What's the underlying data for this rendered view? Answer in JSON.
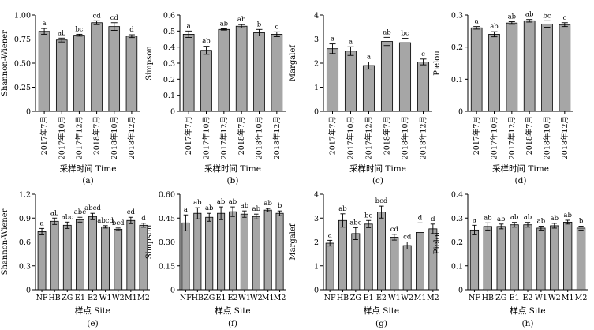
{
  "chart_data": [
    {
      "type": "bar",
      "panel": "(a)",
      "xlabel": "采样时间 Time",
      "ylabel": "Shannon-Wiener",
      "categories": [
        "2017年7月",
        "2017年10月",
        "2017年12月",
        "2018年7月",
        "2018年10月",
        "2018年12月"
      ],
      "values": [
        0.83,
        0.74,
        0.79,
        0.92,
        0.88,
        0.78
      ],
      "errors": [
        0.03,
        0.02,
        0.01,
        0.02,
        0.04,
        0.015
      ],
      "letters": [
        "a",
        "ab",
        "bc",
        "cd",
        "cd",
        "d"
      ],
      "ylim": [
        0,
        1.0
      ],
      "ticks": [
        0,
        0.25,
        0.5,
        0.75,
        1.0
      ],
      "tick_labels": [
        "0",
        "0.25",
        "0.50",
        "0.75",
        "1.00"
      ]
    },
    {
      "type": "bar",
      "panel": "(b)",
      "xlabel": "采样时间 Time",
      "ylabel": "Simpson",
      "categories": [
        "2017年7月",
        "2017年10月",
        "2017年12月",
        "2018年7月",
        "2018年10月",
        "2018年12月"
      ],
      "values": [
        0.48,
        0.38,
        0.51,
        0.53,
        0.49,
        0.48
      ],
      "errors": [
        0.02,
        0.025,
        0.004,
        0.01,
        0.02,
        0.015
      ],
      "letters": [
        "a",
        "ab",
        "ab",
        "ab",
        "b",
        "c"
      ],
      "ylim": [
        0,
        0.6
      ],
      "ticks": [
        0,
        0.1,
        0.2,
        0.3,
        0.4,
        0.5,
        0.6
      ],
      "tick_labels": [
        "0",
        "0.1",
        "0.2",
        "0.3",
        "0.4",
        "0.5",
        "0.6"
      ]
    },
    {
      "type": "bar",
      "panel": "(c)",
      "xlabel": "采样时间 Time",
      "ylabel": "Margalef",
      "categories": [
        "2017年7月",
        "2017年10月",
        "2017年12月",
        "2018年7月",
        "2018年10月",
        "2018年12月"
      ],
      "values": [
        2.6,
        2.5,
        1.9,
        2.9,
        2.85,
        2.05
      ],
      "errors": [
        0.2,
        0.18,
        0.15,
        0.17,
        0.18,
        0.12
      ],
      "letters": [
        "a",
        "a",
        "a",
        "ab",
        "bc",
        "c"
      ],
      "ylim": [
        0,
        4
      ],
      "ticks": [
        0,
        1,
        2,
        3,
        4
      ],
      "tick_labels": [
        "0",
        "1",
        "2",
        "3",
        "4"
      ]
    },
    {
      "type": "bar",
      "panel": "(d)",
      "xlabel": "采样时间 Time",
      "ylabel": "Pielou",
      "categories": [
        "2017年7月",
        "2017年10月",
        "2017年12月",
        "2018年7月",
        "2018年10月",
        "2018年12月"
      ],
      "values": [
        0.26,
        0.24,
        0.275,
        0.282,
        0.272,
        0.27
      ],
      "errors": [
        0.004,
        0.008,
        0.004,
        0.004,
        0.01,
        0.006
      ],
      "letters": [
        "a",
        "ab",
        "ab",
        "ab",
        "bc",
        "c"
      ],
      "ylim": [
        0,
        0.3
      ],
      "ticks": [
        0,
        0.1,
        0.2,
        0.3
      ],
      "tick_labels": [
        "0",
        "0.1",
        "0.2",
        "0.3"
      ]
    },
    {
      "type": "bar",
      "panel": "(e)",
      "xlabel": "样点 Site",
      "ylabel": "Shannon-Wiener",
      "categories": [
        "NF",
        "HB",
        "ZG",
        "E1",
        "E2",
        "W1",
        "W2",
        "M1",
        "M2"
      ],
      "values": [
        0.73,
        0.86,
        0.81,
        0.88,
        0.92,
        0.79,
        0.76,
        0.87,
        0.81
      ],
      "errors": [
        0.04,
        0.04,
        0.04,
        0.03,
        0.04,
        0.015,
        0.015,
        0.04,
        0.025
      ],
      "letters": [
        "a",
        "ab",
        "abc",
        "abc",
        "abcd",
        "abcd",
        "bcd",
        "cd",
        "d"
      ],
      "ylim": [
        0,
        1.2
      ],
      "ticks": [
        0,
        0.3,
        0.6,
        0.9,
        1.2
      ],
      "tick_labels": [
        "0",
        "0.3",
        "0.6",
        "0.9",
        "1.2"
      ]
    },
    {
      "type": "bar",
      "panel": "(f)",
      "xlabel": "样点 Site",
      "ylabel": "Simpson",
      "categories": [
        "NF",
        "HB",
        "ZG",
        "E1",
        "E2",
        "W1",
        "W2",
        "M1",
        "M2"
      ],
      "values": [
        0.42,
        0.48,
        0.455,
        0.48,
        0.49,
        0.475,
        0.46,
        0.5,
        0.48
      ],
      "errors": [
        0.05,
        0.035,
        0.025,
        0.04,
        0.03,
        0.02,
        0.015,
        0.01,
        0.015
      ],
      "letters": [
        "a",
        "ab",
        "ab",
        "ab",
        "ab",
        "ab",
        "ab",
        "ab",
        "b"
      ],
      "ylim": [
        0,
        0.6
      ],
      "ticks": [
        0,
        0.15,
        0.3,
        0.45,
        0.6
      ],
      "tick_labels": [
        "0",
        "0.15",
        "0.30",
        "0.45",
        "0.60"
      ]
    },
    {
      "type": "bar",
      "panel": "(g)",
      "xlabel": "样点 Site",
      "ylabel": "Margalef",
      "categories": [
        "NF",
        "HB",
        "ZG",
        "E1",
        "E2",
        "W1",
        "W2",
        "M1",
        "M2"
      ],
      "values": [
        1.95,
        2.9,
        2.35,
        2.75,
        3.25,
        2.2,
        1.85,
        2.4,
        2.55
      ],
      "errors": [
        0.12,
        0.28,
        0.25,
        0.15,
        0.25,
        0.12,
        0.15,
        0.4,
        0.2
      ],
      "letters": [
        "a",
        "ab",
        "abc",
        "bc",
        "bcd",
        "cd",
        "cd",
        "d",
        "d"
      ],
      "ylim": [
        0,
        4
      ],
      "ticks": [
        0,
        1,
        2,
        3,
        4
      ],
      "tick_labels": [
        "0",
        "1",
        "2",
        "3",
        "4"
      ]
    },
    {
      "type": "bar",
      "panel": "(h)",
      "xlabel": "样点 Site",
      "ylabel": "Pielou",
      "categories": [
        "NF",
        "HB",
        "ZG",
        "E1",
        "E2",
        "W1",
        "W2",
        "M1",
        "M2"
      ],
      "values": [
        0.25,
        0.265,
        0.265,
        0.272,
        0.272,
        0.258,
        0.268,
        0.283,
        0.258
      ],
      "errors": [
        0.02,
        0.015,
        0.01,
        0.01,
        0.01,
        0.008,
        0.01,
        0.008,
        0.008
      ],
      "letters": [
        "a",
        "ab",
        "ab",
        "ab",
        "ab",
        "ab",
        "ab",
        "ab",
        "b"
      ],
      "ylim": [
        0,
        0.4
      ],
      "ticks": [
        0,
        0.1,
        0.2,
        0.3,
        0.4
      ],
      "tick_labels": [
        "0",
        "0.1",
        "0.2",
        "0.3",
        "0.4"
      ]
    }
  ]
}
